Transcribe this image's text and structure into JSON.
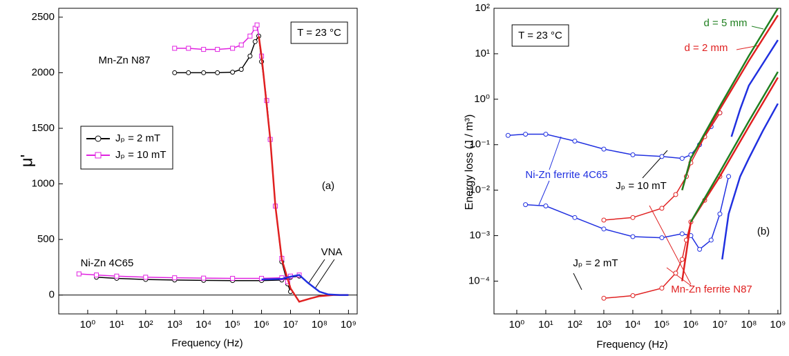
{
  "chart_data": [
    {
      "type": "line",
      "xlabel": "Frequency (Hz)",
      "ylabel": "μ'",
      "xscale": "log",
      "yscale": "linear",
      "xlim": [
        0.1,
        2000000000
      ],
      "ylim": [
        -170,
        2580
      ],
      "xticks": [
        {
          "value": 1,
          "label": "10⁰"
        },
        {
          "value": 10,
          "label": "10¹"
        },
        {
          "value": 100,
          "label": "10²"
        },
        {
          "value": 1000,
          "label": "10³"
        },
        {
          "value": 10000,
          "label": "10⁴"
        },
        {
          "value": 100000,
          "label": "10⁵"
        },
        {
          "value": 1000000,
          "label": "10⁶"
        },
        {
          "value": 10000000,
          "label": "10⁷"
        },
        {
          "value": 100000000,
          "label": "10⁸"
        },
        {
          "value": 1000000000,
          "label": "10⁹"
        }
      ],
      "yticks": [
        0,
        500,
        1000,
        1500,
        2000,
        2500
      ],
      "legend": "left",
      "series": [
        {
          "name": "Jₚ = 2 mT",
          "color": "#000000",
          "marker": "circle",
          "x": [
            1000,
            3000,
            10000,
            30000,
            100000,
            200000,
            400000,
            600000,
            800000,
            1000000,
            1500000,
            2000000,
            3000000,
            5000000,
            8000000,
            10000000
          ],
          "values": [
            2000,
            2000,
            2000,
            2000,
            2005,
            2030,
            2150,
            2280,
            2330,
            2100,
            1750,
            1400,
            800,
            300,
            100,
            30
          ]
        },
        {
          "name": "Jₚ = 10 mT",
          "color": "#e020e0",
          "marker": "square",
          "x": [
            1000,
            3000,
            10000,
            30000,
            100000,
            200000,
            400000,
            600000,
            700000,
            1000000,
            1500000,
            2000000,
            3000000,
            5000000,
            8000000
          ],
          "values": [
            2220,
            2220,
            2210,
            2210,
            2220,
            2250,
            2330,
            2400,
            2430,
            2150,
            1750,
            1400,
            800,
            330,
            120
          ]
        },
        {
          "color": "#000000",
          "marker": "circle",
          "x": [
            2,
            10,
            100,
            1000,
            10000,
            100000,
            1000000,
            5000000,
            10000000,
            20000000
          ],
          "values": [
            160,
            150,
            140,
            135,
            132,
            130,
            130,
            135,
            160,
            170
          ]
        },
        {
          "color": "#e020e0",
          "marker": "square",
          "x": [
            0.5,
            2,
            10,
            100,
            1000,
            10000,
            100000,
            1000000,
            5000000,
            10000000,
            20000000
          ],
          "values": [
            190,
            180,
            170,
            160,
            155,
            152,
            150,
            150,
            155,
            170,
            180
          ]
        },
        {
          "color": "#e02020",
          "marker": null,
          "x": [
            800000,
            1000000,
            2000000,
            3000000,
            5000000,
            10000000,
            20000000,
            50000000,
            100000000,
            300000000,
            1000000000
          ],
          "values": [
            2330,
            2150,
            1400,
            800,
            320,
            60,
            -60,
            -30,
            -10,
            0,
            0
          ]
        },
        {
          "color": "#2030e0",
          "marker": null,
          "x": [
            1000000,
            5000000,
            10000000,
            20000000,
            40000000,
            100000000,
            200000000,
            500000000,
            1000000000
          ],
          "values": [
            140,
            145,
            165,
            180,
            110,
            30,
            5,
            0,
            0
          ]
        }
      ],
      "annotations": [
        {
          "text": "T = 23 °C",
          "color": "#000000"
        },
        {
          "text": "Mn-Zn N87",
          "color": "#000000"
        },
        {
          "text": "Ni-Zn 4C65",
          "color": "#000000"
        },
        {
          "text": "VNA",
          "color": "#000000"
        },
        {
          "text": "(a)",
          "color": "#000000"
        }
      ]
    },
    {
      "type": "line",
      "xlabel": "Frequency (Hz)",
      "ylabel": "Energy loss (J / m³)",
      "xscale": "log",
      "yscale": "log",
      "xlim": [
        0.164,
        1250000000
      ],
      "ylim": [
        1.9e-05,
        100
      ],
      "xticks": [
        {
          "value": 1,
          "label": "10⁰"
        },
        {
          "value": 10,
          "label": "10¹"
        },
        {
          "value": 100,
          "label": "10²"
        },
        {
          "value": 1000,
          "label": "10³"
        },
        {
          "value": 10000,
          "label": "10⁴"
        },
        {
          "value": 100000,
          "label": "10⁵"
        },
        {
          "value": 1000000,
          "label": "10⁶"
        },
        {
          "value": 10000000,
          "label": "10⁷"
        },
        {
          "value": 100000000,
          "label": "10⁸"
        },
        {
          "value": 1000000000,
          "label": "10⁹"
        }
      ],
      "yticks": [
        {
          "value": 0.0001,
          "label": "10⁻⁴"
        },
        {
          "value": 0.001,
          "label": "10⁻³"
        },
        {
          "value": 0.01,
          "label": "10⁻²"
        },
        {
          "value": 0.1,
          "label": "10⁻¹"
        },
        {
          "value": 1,
          "label": "10⁰"
        },
        {
          "value": 10,
          "label": "10¹"
        },
        {
          "value": 100,
          "label": "10²"
        }
      ],
      "series": [
        {
          "color": "#2030e0",
          "marker": "circle",
          "x": [
            0.5,
            2,
            10,
            100,
            1000,
            10000,
            100000,
            500000,
            1000000,
            2000000,
            5000000,
            10000000
          ],
          "values": [
            0.16,
            0.17,
            0.17,
            0.12,
            0.08,
            0.06,
            0.055,
            0.05,
            0.06,
            0.1,
            0.25,
            0.5
          ]
        },
        {
          "color": "#2030e0",
          "marker": "circle",
          "x": [
            2,
            10,
            100,
            1000,
            10000,
            100000,
            500000,
            1000000,
            2000000,
            5000000,
            10000000,
            20000000
          ],
          "values": [
            0.0048,
            0.0045,
            0.0025,
            0.0014,
            0.00095,
            0.0009,
            0.0011,
            0.001,
            0.0005,
            0.0008,
            0.003,
            0.02
          ]
        },
        {
          "color": "#e02020",
          "marker": "circle",
          "x": [
            1000,
            10000,
            100000,
            300000,
            700000,
            1000000,
            3000000,
            10000000
          ],
          "values": [
            0.0022,
            0.0025,
            0.004,
            0.008,
            0.02,
            0.04,
            0.15,
            0.5
          ]
        },
        {
          "color": "#e02020",
          "marker": "circle",
          "x": [
            1000,
            10000,
            100000,
            300000,
            500000,
            700000,
            1000000,
            3000000,
            10000000
          ],
          "values": [
            4.2e-05,
            4.8e-05,
            7e-05,
            0.00015,
            0.0003,
            0.0008,
            0.002,
            0.006,
            0.02
          ]
        },
        {
          "color": "#2030e0",
          "marker": null,
          "x": [
            25000000,
            50000000,
            100000000,
            300000000,
            1000000000
          ],
          "values": [
            0.15,
            0.6,
            2,
            6,
            20
          ]
        },
        {
          "color": "#2030e0",
          "marker": null,
          "x": [
            12000000,
            20000000,
            50000000,
            100000000,
            300000000,
            1000000000
          ],
          "values": [
            0.0003,
            0.003,
            0.02,
            0.05,
            0.2,
            0.8
          ]
        },
        {
          "color": "#e02020",
          "marker": null,
          "x": [
            500000,
            1000000,
            10000000,
            100000000,
            1000000000
          ],
          "values": [
            0.01,
            0.05,
            0.6,
            7,
            70
          ]
        },
        {
          "color": "#e02020",
          "marker": null,
          "x": [
            500000,
            1000000,
            10000000,
            100000000,
            1000000000
          ],
          "values": [
            0.0001,
            0.002,
            0.02,
            0.25,
            3
          ]
        },
        {
          "color": "#208020",
          "marker": null,
          "x": [
            500000,
            1000000,
            10000000,
            100000000,
            1000000000
          ],
          "values": [
            0.01,
            0.05,
            0.7,
            9,
            100
          ]
        },
        {
          "color": "#208020",
          "marker": null,
          "x": [
            1000000,
            10000000,
            100000000,
            1000000000
          ],
          "values": [
            0.002,
            0.025,
            0.33,
            4
          ]
        }
      ],
      "annotations": [
        {
          "text": "T = 23 °C",
          "color": "#000000"
        },
        {
          "text": "d = 5 mm",
          "color": "#208020"
        },
        {
          "text": "d = 2 mm",
          "color": "#e02020"
        },
        {
          "text": "Ni-Zn ferrite 4C65",
          "color": "#2030e0"
        },
        {
          "text": "Jₚ = 10 mT",
          "color": "#000000"
        },
        {
          "text": "Jₚ = 2 mT",
          "color": "#000000"
        },
        {
          "text": "Mn-Zn ferrite N87",
          "color": "#e02020"
        },
        {
          "text": "(b)",
          "color": "#000000"
        }
      ]
    }
  ]
}
